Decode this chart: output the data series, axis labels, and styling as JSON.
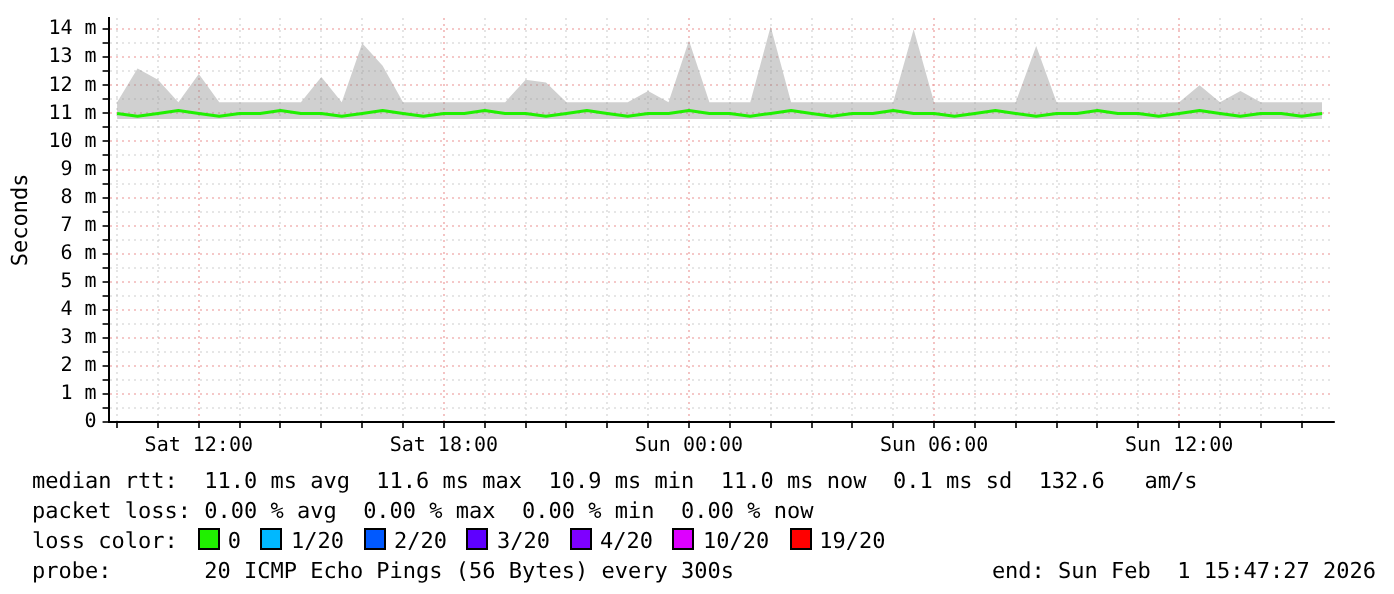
{
  "chart_data": {
    "type": "line",
    "ylabel": "Seconds",
    "legend": "bottom",
    "legend_title": "loss color:",
    "grid": true,
    "marker": "none",
    "line_style": "solid",
    "xlim": [
      "2026-01-31T09:47:27",
      "2026-02-01T15:47:27"
    ],
    "xticks": [
      {
        "value": "2026-01-31T10:00",
        "label": null
      },
      {
        "value": "2026-01-31T11:00",
        "label": null
      },
      {
        "value": "2026-01-31T12:00",
        "label": "Sat 12:00"
      },
      {
        "value": "2026-01-31T13:00",
        "label": null
      },
      {
        "value": "2026-01-31T14:00",
        "label": null
      },
      {
        "value": "2026-01-31T15:00",
        "label": null
      },
      {
        "value": "2026-01-31T16:00",
        "label": null
      },
      {
        "value": "2026-01-31T17:00",
        "label": null
      },
      {
        "value": "2026-01-31T18:00",
        "label": "Sat 18:00"
      },
      {
        "value": "2026-01-31T19:00",
        "label": null
      },
      {
        "value": "2026-01-31T20:00",
        "label": null
      },
      {
        "value": "2026-01-31T21:00",
        "label": null
      },
      {
        "value": "2026-01-31T22:00",
        "label": null
      },
      {
        "value": "2026-01-31T23:00",
        "label": null
      },
      {
        "value": "2026-02-01T00:00",
        "label": "Sun 00:00"
      },
      {
        "value": "2026-02-01T01:00",
        "label": null
      },
      {
        "value": "2026-02-01T02:00",
        "label": null
      },
      {
        "value": "2026-02-01T03:00",
        "label": null
      },
      {
        "value": "2026-02-01T04:00",
        "label": null
      },
      {
        "value": "2026-02-01T05:00",
        "label": null
      },
      {
        "value": "2026-02-01T06:00",
        "label": "Sun 06:00"
      },
      {
        "value": "2026-02-01T07:00",
        "label": null
      },
      {
        "value": "2026-02-01T08:00",
        "label": null
      },
      {
        "value": "2026-02-01T09:00",
        "label": null
      },
      {
        "value": "2026-02-01T10:00",
        "label": null
      },
      {
        "value": "2026-02-01T11:00",
        "label": null
      },
      {
        "value": "2026-02-01T12:00",
        "label": "Sun 12:00"
      },
      {
        "value": "2026-02-01T13:00",
        "label": null
      },
      {
        "value": "2026-02-01T14:00",
        "label": null
      },
      {
        "value": "2026-02-01T15:00",
        "label": null
      }
    ],
    "ylim": [
      0,
      14.4
    ],
    "yticks": [
      0,
      {
        "value": 0.5,
        "label": null
      },
      {
        "value": 1,
        "label": "1 m"
      },
      {
        "value": 1.5,
        "label": null
      },
      {
        "value": 2,
        "label": "2 m"
      },
      {
        "value": 2.5,
        "label": null
      },
      {
        "value": 3,
        "label": "3 m"
      },
      {
        "value": 3.5,
        "label": null
      },
      {
        "value": 4,
        "label": "4 m"
      },
      {
        "value": 4.5,
        "label": null
      },
      {
        "value": 5,
        "label": "5 m"
      },
      {
        "value": 5.5,
        "label": null
      },
      {
        "value": 6,
        "label": "6 m"
      },
      {
        "value": 6.5,
        "label": null
      },
      {
        "value": 7,
        "label": "7 m"
      },
      {
        "value": 7.5,
        "label": null
      },
      {
        "value": 8,
        "label": "8 m"
      },
      {
        "value": 8.5,
        "label": null
      },
      {
        "value": 9,
        "label": "9 m"
      },
      {
        "value": 9.5,
        "label": null
      },
      {
        "value": 10,
        "label": "10 m"
      },
      {
        "value": 10.5,
        "label": null
      },
      {
        "value": 11,
        "label": "11 m"
      },
      {
        "value": 11.5,
        "label": null
      },
      {
        "value": 12,
        "label": "12 m"
      },
      {
        "value": 12.5,
        "label": null
      },
      {
        "value": 13,
        "label": "13 m"
      },
      {
        "value": 13.5,
        "label": null
      },
      {
        "value": 14,
        "label": "14 m"
      }
    ],
    "x": [
      "2026-01-31T10:00",
      "2026-01-31T10:30",
      "2026-01-31T11:00",
      "2026-01-31T11:30",
      "2026-01-31T12:00",
      "2026-01-31T12:30",
      "2026-01-31T13:00",
      "2026-01-31T13:30",
      "2026-01-31T14:00",
      "2026-01-31T14:30",
      "2026-01-31T15:00",
      "2026-01-31T15:30",
      "2026-01-31T16:00",
      "2026-01-31T16:30",
      "2026-01-31T17:00",
      "2026-01-31T17:30",
      "2026-01-31T18:00",
      "2026-01-31T18:30",
      "2026-01-31T19:00",
      "2026-01-31T19:30",
      "2026-01-31T20:00",
      "2026-01-31T20:30",
      "2026-01-31T21:00",
      "2026-01-31T21:30",
      "2026-01-31T22:00",
      "2026-01-31T22:30",
      "2026-01-31T23:00",
      "2026-01-31T23:30",
      "2026-02-01T00:00",
      "2026-02-01T00:30",
      "2026-02-01T01:00",
      "2026-02-01T01:30",
      "2026-02-01T02:00",
      "2026-02-01T02:30",
      "2026-02-01T03:00",
      "2026-02-01T03:30",
      "2026-02-01T04:00",
      "2026-02-01T04:30",
      "2026-02-01T05:00",
      "2026-02-01T05:30",
      "2026-02-01T06:00",
      "2026-02-01T06:30",
      "2026-02-01T07:00",
      "2026-02-01T07:30",
      "2026-02-01T08:00",
      "2026-02-01T08:30",
      "2026-02-01T09:00",
      "2026-02-01T09:30",
      "2026-02-01T10:00",
      "2026-02-01T10:30",
      "2026-02-01T11:00",
      "2026-02-01T11:30",
      "2026-02-01T12:00",
      "2026-02-01T12:30",
      "2026-02-01T13:00",
      "2026-02-01T13:30",
      "2026-02-01T14:00",
      "2026-02-01T14:30",
      "2026-02-01T15:00",
      "2026-02-01T15:30"
    ],
    "series": [
      {
        "name": "0",
        "color": "#20f000",
        "values": [
          11,
          10.9,
          11,
          11.1,
          11,
          10.9,
          11,
          11,
          11.1,
          11,
          11,
          10.9,
          11,
          11.1,
          11,
          10.9,
          11,
          11,
          11.1,
          11,
          11,
          10.9,
          11,
          11.1,
          11,
          10.9,
          11,
          11,
          11.1,
          11,
          11,
          10.9,
          11,
          11.1,
          11,
          10.9,
          11,
          11,
          11.1,
          11,
          11,
          10.9,
          11,
          11.1,
          11,
          10.9,
          11,
          11,
          11.1,
          11,
          11,
          10.9,
          11,
          11.1,
          11,
          10.9,
          11,
          11,
          10.9,
          11
        ],
        "lower": [
          10.8,
          10.8,
          10.8,
          10.8,
          10.8,
          10.8,
          10.8,
          10.8,
          10.8,
          10.8,
          10.8,
          10.8,
          10.8,
          10.8,
          10.8,
          10.8,
          10.8,
          10.8,
          10.8,
          10.8,
          10.8,
          10.8,
          10.8,
          10.8,
          10.8,
          10.8,
          10.8,
          10.8,
          10.8,
          10.8,
          10.8,
          10.8,
          10.8,
          10.8,
          10.8,
          10.8,
          10.8,
          10.8,
          10.8,
          10.8,
          10.8,
          10.8,
          10.8,
          10.8,
          10.8,
          10.8,
          10.8,
          10.8,
          10.8,
          10.8,
          10.8,
          10.8,
          10.8,
          10.8,
          10.8,
          10.8,
          10.8,
          10.8,
          10.8,
          10.8
        ],
        "upper": [
          11.4,
          12.6,
          12.2,
          11.4,
          12.4,
          11.4,
          11.4,
          11.4,
          11.4,
          11.4,
          12.3,
          11.4,
          13.5,
          12.7,
          11.4,
          11.4,
          11.4,
          11.4,
          11.4,
          11.4,
          12.2,
          12.1,
          11.4,
          11.4,
          11.4,
          11.4,
          11.8,
          11.4,
          13.6,
          11.4,
          11.4,
          11.4,
          14.1,
          11.4,
          11.4,
          11.4,
          11.4,
          11.4,
          11.4,
          14,
          11.4,
          11.4,
          11.4,
          11.4,
          11.4,
          13.4,
          11.4,
          11.4,
          11.4,
          11.4,
          11.4,
          11.4,
          11.4,
          12,
          11.4,
          11.8,
          11.4,
          11.4,
          11.4,
          11.4
        ]
      },
      {
        "name": "1/20",
        "color": "#00b8ff",
        "values": [
          null,
          null,
          null,
          null,
          null,
          null,
          null,
          null,
          null,
          null,
          null,
          null,
          null,
          null,
          null,
          null,
          null,
          null,
          null,
          null,
          null,
          null,
          null,
          null,
          null,
          null,
          null,
          null,
          null,
          null,
          null,
          null,
          null,
          null,
          null,
          null,
          null,
          null,
          null,
          null,
          null,
          null,
          null,
          null,
          null,
          null,
          null,
          null,
          null,
          null,
          null,
          null,
          null,
          null,
          null,
          null,
          null,
          null,
          null,
          null
        ]
      },
      {
        "name": "2/20",
        "color": "#0059ff",
        "values": [
          null,
          null,
          null,
          null,
          null,
          null,
          null,
          null,
          null,
          null,
          null,
          null,
          null,
          null,
          null,
          null,
          null,
          null,
          null,
          null,
          null,
          null,
          null,
          null,
          null,
          null,
          null,
          null,
          null,
          null,
          null,
          null,
          null,
          null,
          null,
          null,
          null,
          null,
          null,
          null,
          null,
          null,
          null,
          null,
          null,
          null,
          null,
          null,
          null,
          null,
          null,
          null,
          null,
          null,
          null,
          null,
          null,
          null,
          null,
          null
        ]
      },
      {
        "name": "3/20",
        "color": "#5e00ff",
        "values": [
          null,
          null,
          null,
          null,
          null,
          null,
          null,
          null,
          null,
          null,
          null,
          null,
          null,
          null,
          null,
          null,
          null,
          null,
          null,
          null,
          null,
          null,
          null,
          null,
          null,
          null,
          null,
          null,
          null,
          null,
          null,
          null,
          null,
          null,
          null,
          null,
          null,
          null,
          null,
          null,
          null,
          null,
          null,
          null,
          null,
          null,
          null,
          null,
          null,
          null,
          null,
          null,
          null,
          null,
          null,
          null,
          null,
          null,
          null,
          null
        ]
      },
      {
        "name": "4/20",
        "color": "#7e00ff",
        "values": [
          null,
          null,
          null,
          null,
          null,
          null,
          null,
          null,
          null,
          null,
          null,
          null,
          null,
          null,
          null,
          null,
          null,
          null,
          null,
          null,
          null,
          null,
          null,
          null,
          null,
          null,
          null,
          null,
          null,
          null,
          null,
          null,
          null,
          null,
          null,
          null,
          null,
          null,
          null,
          null,
          null,
          null,
          null,
          null,
          null,
          null,
          null,
          null,
          null,
          null,
          null,
          null,
          null,
          null,
          null,
          null,
          null,
          null,
          null,
          null
        ]
      },
      {
        "name": "10/20",
        "color": "#dd00ff",
        "values": [
          null,
          null,
          null,
          null,
          null,
          null,
          null,
          null,
          null,
          null,
          null,
          null,
          null,
          null,
          null,
          null,
          null,
          null,
          null,
          null,
          null,
          null,
          null,
          null,
          null,
          null,
          null,
          null,
          null,
          null,
          null,
          null,
          null,
          null,
          null,
          null,
          null,
          null,
          null,
          null,
          null,
          null,
          null,
          null,
          null,
          null,
          null,
          null,
          null,
          null,
          null,
          null,
          null,
          null,
          null,
          null,
          null,
          null,
          null,
          null
        ]
      },
      {
        "name": "19/20",
        "color": "#ff0000",
        "values": [
          null,
          null,
          null,
          null,
          null,
          null,
          null,
          null,
          null,
          null,
          null,
          null,
          null,
          null,
          null,
          null,
          null,
          null,
          null,
          null,
          null,
          null,
          null,
          null,
          null,
          null,
          null,
          null,
          null,
          null,
          null,
          null,
          null,
          null,
          null,
          null,
          null,
          null,
          null,
          null,
          null,
          null,
          null,
          null,
          null,
          null,
          null,
          null,
          null,
          null,
          null,
          null,
          null,
          null,
          null,
          null,
          null,
          null,
          null,
          null
        ]
      }
    ],
    "annotations": [
      "median rtt:  11.0 ms avg  11.6 ms max  10.9 ms min  11.0 ms now  0.1 ms sd  132.6   am/s",
      "packet loss: 0.00 % avg  0.00 % max  0.00 % min  0.00 % now",
      "probe:       20 ICMP Echo Pings (56 Bytes) every 300s",
      "end: Sun Feb  1 15:47:27 2026"
    ]
  }
}
